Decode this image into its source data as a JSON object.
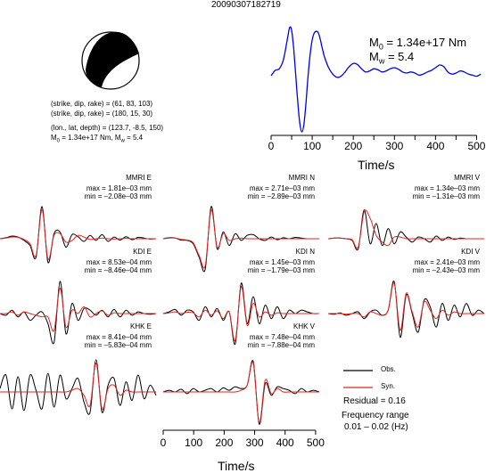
{
  "title": "20090307182719",
  "focal_params": {
    "line1": "(strike, dip, rake) = (61, 83, 103)",
    "line2": "(strike, dip, rake) = (180, 15, 30)",
    "line3": "(lon., lat, depth) = (123.7, -8.5, 150)",
    "line4_prefix": "M",
    "line4_sub": "0",
    "line4_mid": " = 1.34e+17 Nm, M",
    "line4_sub2": "w",
    "line4_suffix": " = 5.4"
  },
  "stf": {
    "m0_prefix": "M",
    "m0_sub": "0",
    "m0_value": " = 1.34e+17 Nm",
    "mw_prefix": "M",
    "mw_sub": "w",
    "mw_value": " = 5.4",
    "xlabel": "Time/s"
  },
  "bottom_xlabel": "Time/s",
  "legend": {
    "obs": "Obs.",
    "syn": "Syn.",
    "residual": "Residual = 0.16",
    "freq_label": "Frequency range",
    "freq_value": "0.01 – 0.02 (Hz)"
  },
  "colors": {
    "obs": "#000000",
    "syn": "#e8231f",
    "stf": "#0000ee"
  },
  "chart_data": [
    {
      "type": "line",
      "name": "source_time_function",
      "xlim": [
        0,
        512
      ],
      "xticks": [
        0,
        50,
        100,
        150,
        200,
        250,
        300,
        350,
        400,
        450,
        500
      ],
      "xtick_labels": [
        "0",
        "",
        "100",
        "",
        "200",
        "",
        "300",
        "",
        "400",
        "",
        "500"
      ],
      "xlabel": "Time/s",
      "series": [
        {
          "x": [
            0,
            10,
            20,
            30,
            40,
            45,
            50,
            55,
            60,
            65,
            70,
            75,
            80,
            85,
            90,
            95,
            100,
            105,
            110,
            115,
            120,
            125,
            130,
            140,
            150,
            160,
            170,
            180,
            190,
            200,
            210,
            220,
            230,
            240,
            250,
            260,
            270,
            280,
            290,
            300,
            310,
            320,
            330,
            340,
            350,
            360,
            370,
            380,
            390,
            400,
            410,
            420,
            430,
            440,
            450,
            460,
            470,
            480,
            490,
            500,
            510
          ],
          "y": [
            0.05,
            0.15,
            0.18,
            0.35,
            0.75,
            0.95,
            0.9,
            0.55,
            0.05,
            -0.45,
            -0.85,
            -1.0,
            -0.85,
            -0.45,
            0.05,
            0.45,
            0.72,
            0.85,
            0.88,
            0.85,
            0.72,
            0.55,
            0.4,
            0.2,
            0.08,
            0.02,
            0.04,
            0.12,
            0.22,
            0.28,
            0.26,
            0.18,
            0.12,
            0.14,
            0.18,
            0.16,
            0.12,
            0.14,
            0.18,
            0.2,
            0.17,
            0.12,
            0.1,
            0.12,
            0.1,
            0.06,
            0.08,
            0.12,
            0.15,
            0.2,
            0.25,
            0.22,
            0.12,
            0.08,
            0.1,
            0.14,
            0.12,
            0.08,
            0.06,
            0.04,
            0.08
          ]
        }
      ]
    },
    {
      "type": "line",
      "name": "waveforms",
      "xlim": [
        0,
        512
      ],
      "xticks": [
        0,
        100,
        200,
        300,
        400,
        500
      ],
      "xlabel": "Time/s",
      "panels": [
        {
          "station": "MMRI E",
          "max": "max = 1.81e–03 mm",
          "min": "min = –2.08e–03 mm",
          "obs": [
            0,
            0.03,
            0.08,
            0.05,
            -0.05,
            -0.2,
            -0.55,
            0.95,
            -0.7,
            0.15,
            0.2,
            -0.25,
            0.12,
            0.06,
            -0.08,
            0.1,
            -0.05,
            0.12,
            -0.08,
            0.05,
            -0.04,
            0.06,
            -0.03,
            0.04,
            0.02,
            -0.01,
            0.0
          ],
          "syn": [
            0,
            0.02,
            0.05,
            0.04,
            -0.02,
            -0.15,
            -0.5,
            0.85,
            -0.6,
            0.1,
            0.15,
            -0.1,
            -0.05,
            0.1,
            0.05,
            -0.02,
            0.0,
            0.02,
            0.0,
            -0.01,
            0.0,
            0.01,
            0.0,
            0.0,
            0.0,
            0.0,
            0.0
          ]
        },
        {
          "station": "MMRI N",
          "max": "max = 2.71e–03 mm",
          "min": "min = –2.89e–03 mm",
          "obs": [
            0,
            0.03,
            0.02,
            -0.04,
            -0.05,
            -0.15,
            -0.55,
            -0.9,
            0.95,
            -0.3,
            0.2,
            -0.2,
            0.15,
            -0.05,
            0.1,
            0.12,
            0.0,
            -0.05,
            0.05,
            -0.03,
            0.03,
            0.0,
            0.04,
            0.02,
            0.0,
            0.0,
            0.0
          ],
          "syn": [
            0,
            0.02,
            0.02,
            -0.02,
            -0.04,
            -0.12,
            -0.5,
            -0.8,
            0.85,
            -0.25,
            0.15,
            -0.05,
            0.0,
            0.02,
            0.0,
            0.0,
            0.0,
            0.0,
            0.0,
            0.0,
            0.0,
            0.0,
            0.0,
            0.0,
            0.0,
            0.0,
            0.0
          ]
        },
        {
          "station": "MMRI V",
          "max": "max = 1.34e–03 mm",
          "min": "min = –1.31e–03 mm",
          "obs": [
            0,
            0.02,
            0.02,
            0.0,
            -0.05,
            -0.3,
            0.85,
            -0.15,
            0.45,
            -0.2,
            0.3,
            -0.15,
            0.2,
            0.05,
            -0.1,
            0.05,
            0.0,
            -0.1,
            0.08,
            -0.05,
            0.05,
            -0.02,
            0.02,
            0.0,
            0.0,
            0.0,
            0.0
          ],
          "syn": [
            0,
            0.02,
            0.02,
            0.0,
            -0.03,
            -0.25,
            0.8,
            0.6,
            0.1,
            -0.1,
            -0.2,
            0.05,
            0.05,
            0.0,
            0.0,
            0.0,
            0.0,
            0.0,
            0.0,
            0.0,
            0.0,
            0.0,
            0.0,
            0.0,
            0.0,
            0.0,
            0.0
          ]
        },
        {
          "station": "KDI E",
          "max": "max = 8.53e–04 mm",
          "min": "min = –8.46e–04 mm",
          "obs": [
            0,
            -0.05,
            0.1,
            -0.1,
            0.05,
            -0.2,
            -0.05,
            0.05,
            -0.3,
            -0.85,
            0.95,
            -0.6,
            0.3,
            -0.2,
            0.15,
            0.1,
            -0.05,
            0.1,
            -0.1,
            0.12,
            -0.1,
            0.1,
            -0.05,
            0.05,
            0.0,
            -0.02,
            0.0
          ],
          "syn": [
            0,
            0.0,
            0.05,
            -0.05,
            0.05,
            0.0,
            -0.05,
            -0.1,
            -0.1,
            -0.5,
            0.75,
            -0.4,
            0.1,
            0.0,
            0.2,
            -0.1,
            0.0,
            0.08,
            -0.05,
            0.02,
            0.0,
            0.0,
            0.0,
            0.0,
            0.0,
            0.0,
            0.0
          ]
        },
        {
          "station": "KDI N",
          "max": "max = 1.45e–03 mm",
          "min": "min = –1.79e–03 mm",
          "obs": [
            0,
            0.05,
            0.12,
            -0.05,
            0.1,
            0.05,
            -0.2,
            0.2,
            -0.1,
            0.15,
            -0.2,
            0.05,
            -0.9,
            0.9,
            -0.3,
            0.5,
            -0.3,
            0.25,
            -0.15,
            0.2,
            -0.15,
            0.1,
            0.0,
            0.1,
            0.05,
            0.0,
            0.0
          ],
          "syn": [
            0,
            0.02,
            0.05,
            0.0,
            0.04,
            0.02,
            -0.1,
            0.1,
            -0.05,
            0.08,
            -0.15,
            0.05,
            -0.8,
            0.8,
            -0.35,
            0.3,
            -0.1,
            0.05,
            -0.05,
            0.02,
            0.0,
            0.0,
            0.0,
            0.0,
            0.0,
            0.0,
            0.0
          ]
        },
        {
          "station": "KDI V",
          "max": "max = 2.41e–03 mm",
          "min": "min = –2.43e–03 mm",
          "obs": [
            0,
            -0.02,
            0.02,
            -0.05,
            0.0,
            0.05,
            -0.15,
            0.05,
            0.1,
            -0.05,
            0.1,
            0.95,
            -0.7,
            0.55,
            0.0,
            -0.55,
            0.4,
            0.2,
            -0.4,
            0.3,
            -0.2,
            0.25,
            -0.1,
            0.3,
            -0.05,
            0.1,
            0.0
          ],
          "syn": [
            0,
            0.0,
            0.0,
            -0.02,
            0.0,
            0.0,
            -0.1,
            0.05,
            0.0,
            -0.05,
            0.1,
            0.9,
            -0.5,
            0.6,
            0.05,
            -0.4,
            0.35,
            0.1,
            -0.15,
            0.1,
            -0.05,
            0.05,
            0.0,
            0.0,
            0.0,
            0.0,
            0.0
          ]
        },
        {
          "station": "KHK E",
          "max": "max = 8.41e–04 mm",
          "min": "min = –5.83e–04 mm",
          "obs": [
            0.1,
            0.5,
            -0.5,
            0.45,
            -0.55,
            0.5,
            0.05,
            -0.5,
            0.55,
            -0.45,
            0.5,
            -0.2,
            0.1,
            0.4,
            -0.3,
            -0.6,
            0.95,
            -0.6,
            0.2,
            0.4,
            -0.4,
            0.3,
            -0.25,
            0.5,
            -0.2,
            0.2,
            -0.1
          ],
          "syn": [
            0,
            0.0,
            0.0,
            0.0,
            0.0,
            0.0,
            0.0,
            0.0,
            0.0,
            0.0,
            0.0,
            0.0,
            0.05,
            0.1,
            -0.1,
            -0.4,
            0.85,
            -0.5,
            0.1,
            0.2,
            -0.1,
            0.05,
            0.0,
            0.0,
            0.0,
            0.0,
            0.0
          ]
        },
        {
          "station": "KHK V",
          "max": "max = 7.48e–04 mm",
          "min": "min = –7.88e–04 mm",
          "obs": [
            0.0,
            0.05,
            0.0,
            0.08,
            -0.05,
            0.1,
            0.0,
            0.05,
            0.1,
            0.0,
            0.12,
            0.05,
            0.15,
            0.1,
            0.2,
            0.9,
            -0.95,
            0.25,
            -0.1,
            0.15,
            0.1,
            0.05,
            -0.05,
            0.1,
            0.0,
            0.05,
            0.0
          ],
          "syn": [
            0.0,
            0.0,
            0.0,
            0.0,
            0.0,
            0.0,
            0.0,
            0.0,
            0.0,
            0.0,
            0.0,
            0.0,
            0.0,
            0.05,
            0.2,
            0.85,
            -0.9,
            0.35,
            -0.05,
            0.1,
            0.0,
            0.0,
            0.0,
            0.0,
            0.0,
            0.0,
            0.0
          ]
        }
      ]
    }
  ]
}
